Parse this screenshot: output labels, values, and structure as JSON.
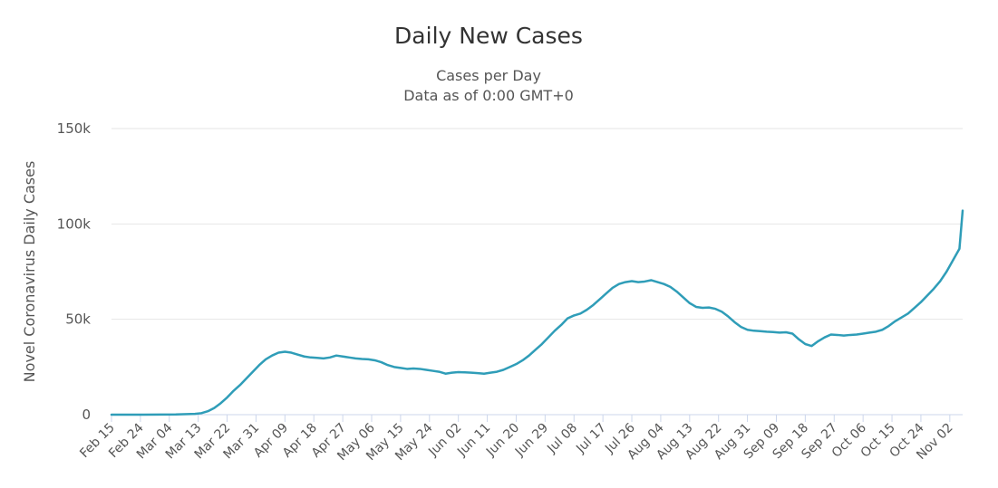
{
  "chart_data": {
    "type": "line",
    "title": "Daily New Cases",
    "subtitle_lines": [
      "Cases per Day",
      "Data as of 0:00 GMT+0"
    ],
    "xlabel": "",
    "ylabel": "Novel Coronavirus Daily Cases",
    "ylim": [
      0,
      150000
    ],
    "yticks": [
      0,
      50000,
      100000,
      150000
    ],
    "ytick_labels": [
      "0",
      "50k",
      "100k",
      "150k"
    ],
    "grid": true,
    "legend": "none",
    "start_date": "Feb 15",
    "num_days": 266,
    "x_tick_labels": [
      "Feb 15",
      "Feb 24",
      "Mar 04",
      "Mar 13",
      "Mar 22",
      "Mar 31",
      "Apr 09",
      "Apr 18",
      "Apr 27",
      "May 06",
      "May 15",
      "May 24",
      "Jun 02",
      "Jun 11",
      "Jun 20",
      "Jun 29",
      "Jul 08",
      "Jul 17",
      "Jul 26",
      "Aug 04",
      "Aug 13",
      "Aug 22",
      "Aug 31",
      "Sep 09",
      "Sep 18",
      "Sep 27",
      "Oct 06",
      "Oct 15",
      "Oct 24",
      "Nov 02"
    ],
    "x_tick_interval_days": 9,
    "series": [
      {
        "name": "Daily Cases",
        "color": "#2f9db8",
        "points": [
          [
            0,
            0
          ],
          [
            10,
            0
          ],
          [
            20,
            100
          ],
          [
            26,
            400
          ],
          [
            28,
            800
          ],
          [
            30,
            1800
          ],
          [
            32,
            3500
          ],
          [
            34,
            6000
          ],
          [
            36,
            9000
          ],
          [
            38,
            12500
          ],
          [
            40,
            15500
          ],
          [
            42,
            19000
          ],
          [
            44,
            22500
          ],
          [
            46,
            26000
          ],
          [
            48,
            29000
          ],
          [
            50,
            31000
          ],
          [
            52,
            32500
          ],
          [
            54,
            33000
          ],
          [
            56,
            32500
          ],
          [
            58,
            31500
          ],
          [
            60,
            30500
          ],
          [
            62,
            30000
          ],
          [
            64,
            29800
          ],
          [
            66,
            29500
          ],
          [
            68,
            30000
          ],
          [
            70,
            31000
          ],
          [
            72,
            30500
          ],
          [
            74,
            30000
          ],
          [
            76,
            29500
          ],
          [
            78,
            29200
          ],
          [
            80,
            29000
          ],
          [
            82,
            28500
          ],
          [
            84,
            27500
          ],
          [
            86,
            26000
          ],
          [
            88,
            25000
          ],
          [
            90,
            24500
          ],
          [
            92,
            24000
          ],
          [
            94,
            24200
          ],
          [
            96,
            24000
          ],
          [
            98,
            23500
          ],
          [
            100,
            23000
          ],
          [
            102,
            22500
          ],
          [
            104,
            21500
          ],
          [
            106,
            22000
          ],
          [
            108,
            22300
          ],
          [
            110,
            22200
          ],
          [
            112,
            22000
          ],
          [
            114,
            21800
          ],
          [
            116,
            21500
          ],
          [
            118,
            22000
          ],
          [
            120,
            22500
          ],
          [
            122,
            23500
          ],
          [
            124,
            25000
          ],
          [
            126,
            26500
          ],
          [
            128,
            28500
          ],
          [
            130,
            31000
          ],
          [
            132,
            34000
          ],
          [
            134,
            37000
          ],
          [
            136,
            40500
          ],
          [
            138,
            44000
          ],
          [
            140,
            47000
          ],
          [
            142,
            50500
          ],
          [
            144,
            52000
          ],
          [
            146,
            53000
          ],
          [
            148,
            55000
          ],
          [
            150,
            57500
          ],
          [
            152,
            60500
          ],
          [
            154,
            63500
          ],
          [
            156,
            66500
          ],
          [
            158,
            68500
          ],
          [
            160,
            69500
          ],
          [
            162,
            70000
          ],
          [
            164,
            69500
          ],
          [
            166,
            69800
          ],
          [
            168,
            70500
          ],
          [
            170,
            69500
          ],
          [
            172,
            68500
          ],
          [
            174,
            67000
          ],
          [
            176,
            64500
          ],
          [
            178,
            61500
          ],
          [
            180,
            58500
          ],
          [
            182,
            56500
          ],
          [
            184,
            56000
          ],
          [
            186,
            56200
          ],
          [
            188,
            55500
          ],
          [
            190,
            54000
          ],
          [
            192,
            51500
          ],
          [
            194,
            48500
          ],
          [
            196,
            46000
          ],
          [
            198,
            44500
          ],
          [
            200,
            44000
          ],
          [
            202,
            43800
          ],
          [
            204,
            43500
          ],
          [
            206,
            43300
          ],
          [
            208,
            43000
          ],
          [
            210,
            43200
          ],
          [
            212,
            42500
          ],
          [
            214,
            39500
          ],
          [
            216,
            37000
          ],
          [
            218,
            36000
          ],
          [
            220,
            38500
          ],
          [
            222,
            40500
          ],
          [
            224,
            42000
          ],
          [
            226,
            41800
          ],
          [
            228,
            41500
          ],
          [
            230,
            41800
          ],
          [
            232,
            42000
          ],
          [
            234,
            42500
          ],
          [
            236,
            43000
          ],
          [
            238,
            43500
          ],
          [
            240,
            44500
          ],
          [
            242,
            46500
          ],
          [
            244,
            49000
          ],
          [
            246,
            51000
          ],
          [
            248,
            53000
          ],
          [
            250,
            56000
          ],
          [
            252,
            59000
          ],
          [
            254,
            62500
          ],
          [
            256,
            66000
          ],
          [
            258,
            70000
          ],
          [
            260,
            75000
          ],
          [
            262,
            81000
          ],
          [
            264,
            87000
          ],
          [
            265,
            107000
          ]
        ]
      }
    ]
  }
}
